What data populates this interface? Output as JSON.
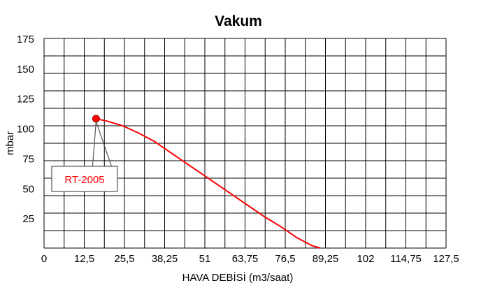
{
  "chart_data": {
    "type": "line",
    "title": "Vakum",
    "xlabel": "HAVA DEBİSİ (m3/saat)",
    "ylabel": "mbar",
    "xlim": [
      0,
      127.5
    ],
    "ylim": [
      0,
      175
    ],
    "x_ticks": [
      "0",
      "12,5",
      "25,5",
      "38,25",
      "51",
      "63,75",
      "76,5",
      "89,25",
      "102",
      "114,75",
      "127,5"
    ],
    "y_ticks": [
      "25",
      "50",
      "75",
      "100",
      "125",
      "150",
      "175"
    ],
    "grid": true,
    "series": [
      {
        "name": "RT-2005",
        "color": "#ff0000",
        "x": [
          16.5,
          20,
          25,
          30,
          35,
          40,
          45,
          50,
          55,
          60,
          65,
          70,
          75,
          80,
          85,
          87.6
        ],
        "y": [
          108,
          106,
          102,
          96,
          89,
          80,
          71,
          62,
          53,
          44,
          35,
          26,
          18,
          9,
          2,
          0
        ]
      }
    ],
    "marker": {
      "x": 16.5,
      "y": 108
    },
    "annotation": {
      "text": "RT-2005",
      "color": "#ff0000"
    }
  }
}
